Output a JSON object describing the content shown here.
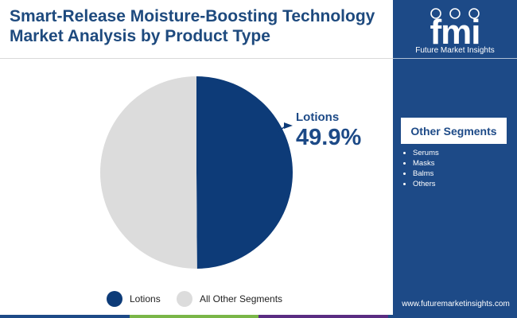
{
  "title_lines": [
    "Smart-Release Moisture-Boosting Technology",
    "Market Analysis by Product Type"
  ],
  "brand": {
    "name": "Future Market Insights",
    "mark": "fmi"
  },
  "website": "www.futuremarketinsights.com",
  "other_segments": {
    "title": "Other Segments",
    "items": [
      "Serums",
      "Masks",
      "Balms",
      "Others"
    ]
  },
  "callout": {
    "label": "Lotions",
    "value": "49.9%"
  },
  "legend": [
    {
      "label": "Lotions",
      "color": "#0d3b78"
    },
    {
      "label": "All Other Segments",
      "color": "#dcdcdc"
    }
  ],
  "colors": {
    "primary": "#0d3b78",
    "other": "#dcdcdc",
    "sidebar": "#1d4a87",
    "bottom_bar": [
      "#1d4a87",
      "#7ab648",
      "#5a2d82",
      "#1d4a87"
    ]
  },
  "chart_data": {
    "type": "pie",
    "title": "Smart-Release Moisture-Boosting Technology Market Analysis by Product Type",
    "slices": [
      {
        "label": "Lotions",
        "value": 49.9,
        "color": "#0d3b78"
      },
      {
        "label": "All Other Segments",
        "value": 50.1,
        "color": "#dcdcdc"
      }
    ],
    "start": "12 o'clock",
    "direction": "clockwise",
    "legend": "bottom"
  }
}
